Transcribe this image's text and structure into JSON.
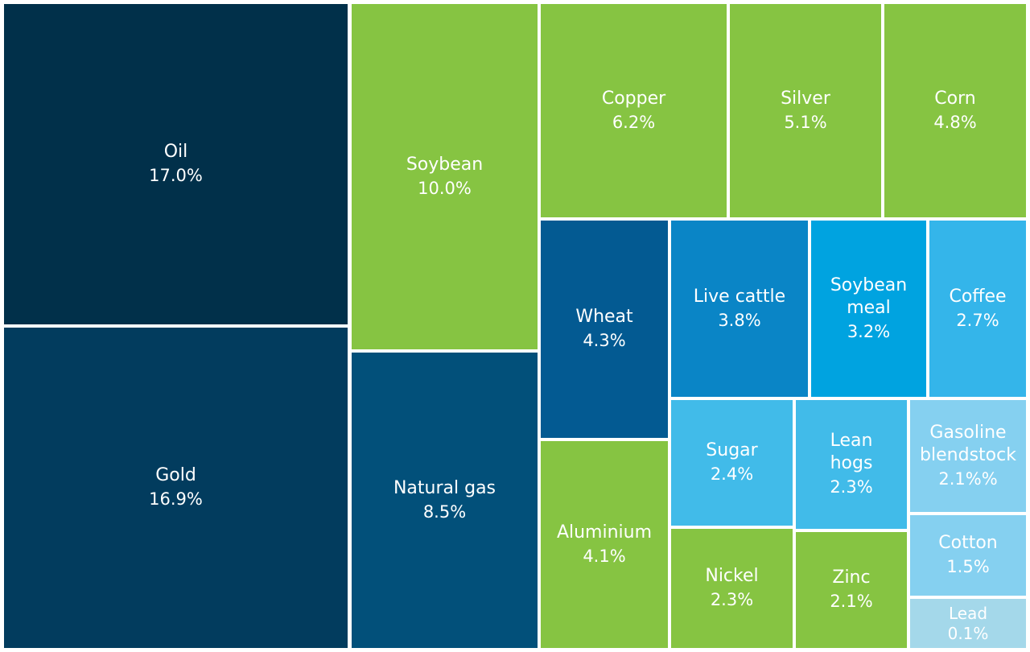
{
  "chart_data": {
    "type": "treemap",
    "items": [
      {
        "name": "Oil",
        "label": "Oil",
        "value_text": "17.0%",
        "value": 17.0,
        "color": "#01304a"
      },
      {
        "name": "Gold",
        "label": "Gold",
        "value_text": "16.9%",
        "value": 16.9,
        "color": "#023c5e"
      },
      {
        "name": "Soybean",
        "label": "Soybean",
        "value_text": "10.0%",
        "value": 10.0,
        "color": "#86c442"
      },
      {
        "name": "Natural gas",
        "label": "Natural gas",
        "value_text": "8.5%",
        "value": 8.5,
        "color": "#02507a"
      },
      {
        "name": "Copper",
        "label": "Copper",
        "value_text": "6.2%",
        "value": 6.2,
        "color": "#86c442"
      },
      {
        "name": "Silver",
        "label": "Silver",
        "value_text": "5.1%",
        "value": 5.1,
        "color": "#86c442"
      },
      {
        "name": "Corn",
        "label": "Corn",
        "value_text": "4.8%",
        "value": 4.8,
        "color": "#86c442"
      },
      {
        "name": "Wheat",
        "label": "Wheat",
        "value_text": "4.3%",
        "value": 4.3,
        "color": "#035a92"
      },
      {
        "name": "Live cattle",
        "label": "Live cattle",
        "value_text": "3.8%",
        "value": 3.8,
        "color": "#0a85c6"
      },
      {
        "name": "Soybean meal",
        "label": "Soybean\nmeal",
        "value_text": "3.2%",
        "value": 3.2,
        "color": "#00a3e0"
      },
      {
        "name": "Coffee",
        "label": "Coffee",
        "value_text": "2.7%",
        "value": 2.7,
        "color": "#34b5ea"
      },
      {
        "name": "Aluminium",
        "label": "Aluminium",
        "value_text": "4.1%",
        "value": 4.1,
        "color": "#86c442"
      },
      {
        "name": "Sugar",
        "label": "Sugar",
        "value_text": "2.4%",
        "value": 2.4,
        "color": "#41bbe9"
      },
      {
        "name": "Lean hogs",
        "label": "Lean\nhogs",
        "value_text": "2.3%",
        "value": 2.3,
        "color": "#41bbe9"
      },
      {
        "name": "Gasoline blendstock",
        "label": "Gasoline\nblendstock",
        "value_text": "2.1%%",
        "value": 2.1,
        "color": "#85d0f0"
      },
      {
        "name": "Nickel",
        "label": "Nickel",
        "value_text": "2.3%",
        "value": 2.3,
        "color": "#86c442"
      },
      {
        "name": "Zinc",
        "label": "Zinc",
        "value_text": "2.1%",
        "value": 2.1,
        "color": "#86c442"
      },
      {
        "name": "Cotton",
        "label": "Cotton",
        "value_text": "1.5%",
        "value": 1.5,
        "color": "#85d0f0"
      },
      {
        "name": "Lead",
        "label": "Lead",
        "value_text": "0.1%",
        "value": 0.1,
        "color": "#a4d8ea"
      }
    ]
  }
}
